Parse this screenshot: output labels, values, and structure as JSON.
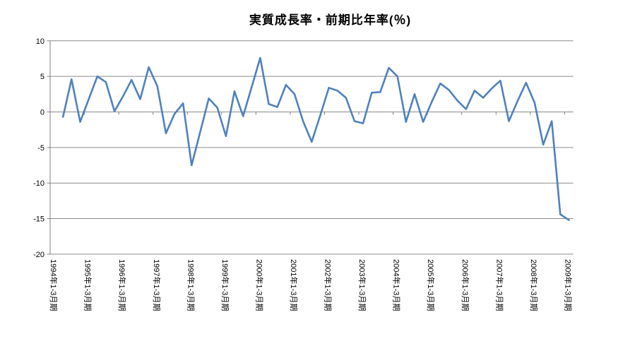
{
  "chart_data": {
    "type": "line",
    "title": "実質成長率・前期比年率(％)",
    "legend": "none",
    "grid": true,
    "background": "#FFFFFF",
    "line_color": "#4F81BD",
    "grid_color": "#8C8C8C",
    "axis_color": "#808080",
    "text_color": "#000000",
    "ylim": [
      -20,
      10
    ],
    "y_ticks": [
      10,
      5,
      0,
      -5,
      -10,
      -15,
      -20
    ],
    "x_axis_note": "quarterly slots, one label per year (1-3月期), labels rotated 90°",
    "quarters_per_label": 4,
    "x_tick_labels": [
      "1994年1-3月期",
      "1995年1-3月期",
      "1996年1-3月期",
      "1997年1-3月期",
      "1998年1-3月期",
      "1999年1-3月期",
      "2000年1-3月期",
      "2001年1-3月期",
      "2002年1-3月期",
      "2003年1-3月期",
      "2004年1-3月期",
      "2005年1-3月期",
      "2006年1-3月期",
      "2007年1-3月期",
      "2008年1-3月期",
      "2009年1-3月期"
    ],
    "series": [
      {
        "name": "実質成長率・前期比年率(％)",
        "start_quarter": "1994年1-3月期",
        "values": [
          null,
          -0.7,
          4.6,
          -1.4,
          1.8,
          5.0,
          4.2,
          0.1,
          2.2,
          4.5,
          1.8,
          6.3,
          3.6,
          -3.0,
          -0.3,
          1.2,
          -7.5,
          -2.8,
          1.9,
          0.6,
          -3.4,
          2.9,
          -0.6,
          3.5,
          7.6,
          1.1,
          0.7,
          3.8,
          2.5,
          -1.3,
          -4.2,
          -0.5,
          3.4,
          3.0,
          2.0,
          -1.3,
          -1.6,
          2.7,
          2.8,
          6.2,
          5.0,
          -1.4,
          2.5,
          -1.4,
          1.4,
          4.0,
          3.1,
          1.6,
          0.4,
          3.0,
          2.0,
          3.3,
          4.4,
          -1.3,
          1.5,
          4.1,
          1.3,
          -4.6,
          -1.3,
          -14.4,
          -15.2
        ]
      }
    ]
  }
}
